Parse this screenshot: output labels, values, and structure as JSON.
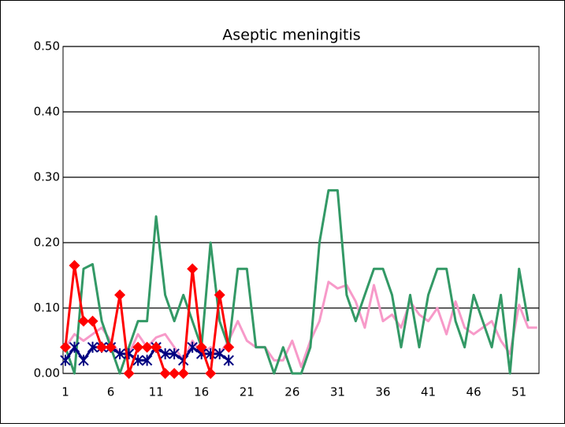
{
  "chart_data": {
    "type": "line",
    "title": "Aseptic meningitis",
    "categories": [
      "1",
      null,
      null,
      null,
      null,
      "6",
      null,
      null,
      null,
      null,
      "11",
      null,
      null,
      null,
      null,
      "16",
      null,
      null,
      null,
      null,
      "21",
      null,
      null,
      null,
      null,
      "26",
      null,
      null,
      null,
      null,
      "31",
      null,
      null,
      null,
      null,
      "36",
      null,
      null,
      null,
      null,
      "41",
      null,
      null,
      null,
      null,
      "46",
      null,
      null,
      null,
      null,
      "51",
      null,
      null
    ],
    "ylim": [
      0,
      0.5
    ],
    "yticks": [
      {
        "value": 0,
        "label": "0.00"
      },
      {
        "value": 0.1,
        "label": "0.10"
      },
      {
        "value": 0.2,
        "label": "0.20"
      },
      {
        "value": 0.3,
        "label": "0.30"
      },
      {
        "value": 0.4,
        "label": "0.40"
      },
      {
        "value": 0.5,
        "label": "0.50"
      }
    ],
    "grid": true,
    "series": [
      {
        "color": "#f79ac9",
        "marker": "none",
        "values": [
          0.04,
          0.06,
          0.05,
          0.06,
          0.07,
          0.05,
          0.03,
          0.03,
          0.06,
          0.04,
          0.055,
          0.06,
          0.04,
          0.02,
          0.05,
          0.03,
          0.04,
          0.03,
          0.05,
          0.08,
          0.05,
          0.04,
          0.04,
          0.02,
          0.02,
          0.05,
          0.01,
          0.05,
          0.08,
          0.14,
          0.13,
          0.135,
          0.11,
          0.07,
          0.135,
          0.08,
          0.09,
          0.07,
          0.11,
          0.09,
          0.08,
          0.1,
          0.06,
          0.11,
          0.07,
          0.06,
          0.07,
          0.08,
          0.05,
          0.03,
          0.105,
          0.07,
          0.07
        ]
      },
      {
        "color": "#339966",
        "marker": "none",
        "values": [
          0.04,
          0.0,
          0.16,
          0.167,
          0.08,
          0.04,
          0.0,
          0.04,
          0.08,
          0.08,
          0.24,
          0.12,
          0.08,
          0.12,
          0.08,
          0.04,
          0.2,
          0.08,
          0.04,
          0.16,
          0.16,
          0.04,
          0.04,
          0.0,
          0.04,
          0.0,
          0.0,
          0.04,
          0.2,
          0.28,
          0.28,
          0.12,
          0.08,
          0.12,
          0.16,
          0.16,
          0.12,
          0.04,
          0.12,
          0.04,
          0.12,
          0.16,
          0.16,
          0.08,
          0.04,
          0.12,
          0.08,
          0.04,
          0.12,
          0.0,
          0.16,
          0.08,
          null
        ]
      },
      {
        "color": "#000080",
        "marker": "star",
        "values": [
          0.02,
          0.04,
          0.02,
          0.04,
          0.04,
          0.04,
          0.03,
          0.03,
          0.02,
          0.02,
          0.04,
          0.03,
          0.03,
          0.02,
          0.04,
          0.03,
          0.03,
          0.03,
          0.02,
          null,
          null,
          null,
          null,
          null,
          null,
          null,
          null,
          null,
          null,
          null,
          null,
          null,
          null,
          null,
          null,
          null,
          null,
          null,
          null,
          null,
          null,
          null,
          null,
          null,
          null,
          null,
          null,
          null,
          null,
          null,
          null,
          null,
          null
        ]
      },
      {
        "color": "#ff0000",
        "marker": "diamond",
        "values": [
          0.04,
          0.165,
          0.08,
          0.08,
          0.04,
          0.04,
          0.12,
          0.0,
          0.04,
          0.04,
          0.04,
          0.0,
          0.0,
          0.0,
          0.16,
          0.04,
          0.0,
          0.12,
          0.04,
          null,
          null,
          null,
          null,
          null,
          null,
          null,
          null,
          null,
          null,
          null,
          null,
          null,
          null,
          null,
          null,
          null,
          null,
          null,
          null,
          null,
          null,
          null,
          null,
          null,
          null,
          null,
          null,
          null,
          null,
          null,
          null,
          null,
          null
        ]
      }
    ]
  }
}
